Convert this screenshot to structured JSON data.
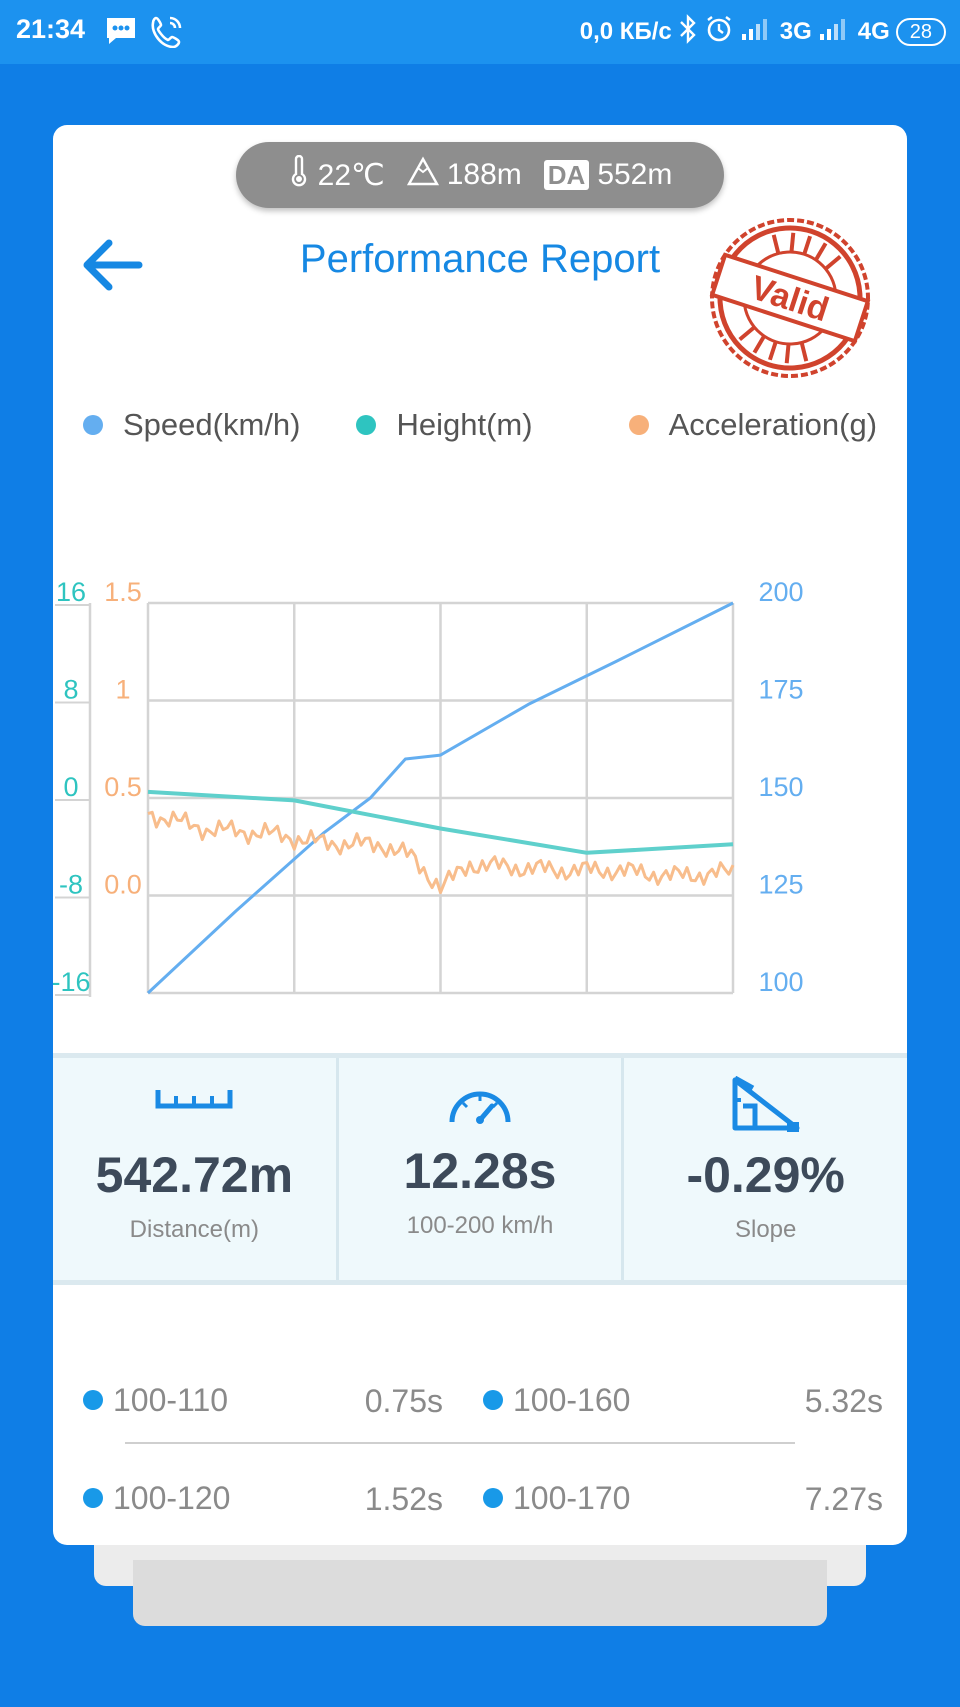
{
  "status_bar": {
    "time": "21:34",
    "network_speed": "0,0 КБ/с",
    "sim1": "3G",
    "sim2": "4G",
    "battery": "28",
    "icons": [
      "message-icon",
      "phone-icon",
      "bluetooth-icon",
      "alarm-icon",
      "signal-icon"
    ]
  },
  "conditions": {
    "temperature": "22℃",
    "altitude": "188m",
    "da_badge": "DA",
    "density_altitude": "552m"
  },
  "header": {
    "title": "Performance Report",
    "stamp_text": "Valid"
  },
  "legend": [
    {
      "label": "Speed(km/h)",
      "color": "#64aef0"
    },
    {
      "label": "Height(m)",
      "color": "#2ec4c0"
    },
    {
      "label": "Acceleration(g)",
      "color": "#f7b07a"
    }
  ],
  "chart_data": {
    "type": "line",
    "grid": true,
    "axes": {
      "height_axis": {
        "ticks": [
          "16",
          "8",
          "0",
          "-8",
          "-16"
        ],
        "range": [
          -16,
          16
        ],
        "color": "#2ec4c0"
      },
      "accel_axis": {
        "ticks": [
          "1.5",
          "1",
          "0.5",
          "0.0"
        ],
        "color": "#f7b07a"
      },
      "speed_axis": {
        "ticks": [
          "200",
          "175",
          "150",
          "125",
          "100"
        ],
        "range": [
          100,
          200
        ],
        "color": "#64aef0"
      }
    },
    "series": [
      {
        "name": "Speed(km/h)",
        "axis": "speed",
        "x": [
          0,
          0.15,
          0.3,
          0.38,
          0.44,
          0.5,
          0.65,
          0.8,
          1.0
        ],
        "values": [
          100,
          121,
          141,
          150,
          160,
          161,
          174,
          185,
          200
        ]
      },
      {
        "name": "Height(m)",
        "axis": "height",
        "x": [
          0,
          0.25,
          0.5,
          0.75,
          1.0
        ],
        "values": [
          0.5,
          -0.2,
          -2.5,
          -4.5,
          -3.8
        ]
      },
      {
        "name": "Acceleration(g)",
        "axis": "accel",
        "x": [
          0,
          0.1,
          0.2,
          0.3,
          0.4,
          0.45,
          0.5,
          0.55,
          0.7,
          0.8,
          0.9,
          1.0
        ],
        "values": [
          0.42,
          0.34,
          0.32,
          0.27,
          0.26,
          0.2,
          0.04,
          0.16,
          0.13,
          0.13,
          0.1,
          0.12
        ]
      }
    ]
  },
  "stats": [
    {
      "icon": "ruler-icon",
      "value": "542.72m",
      "label": "Distance(m)"
    },
    {
      "icon": "speedometer-icon",
      "value": "12.28s",
      "label": "100-200 km/h"
    },
    {
      "icon": "slope-icon",
      "value": "-0.29%",
      "label": "Slope"
    }
  ],
  "split_times": [
    {
      "range": "100-110",
      "time": "0.75s"
    },
    {
      "range": "100-160",
      "time": "5.32s"
    },
    {
      "range": "100-120",
      "time": "1.52s"
    },
    {
      "range": "100-170",
      "time": "7.27s"
    }
  ]
}
